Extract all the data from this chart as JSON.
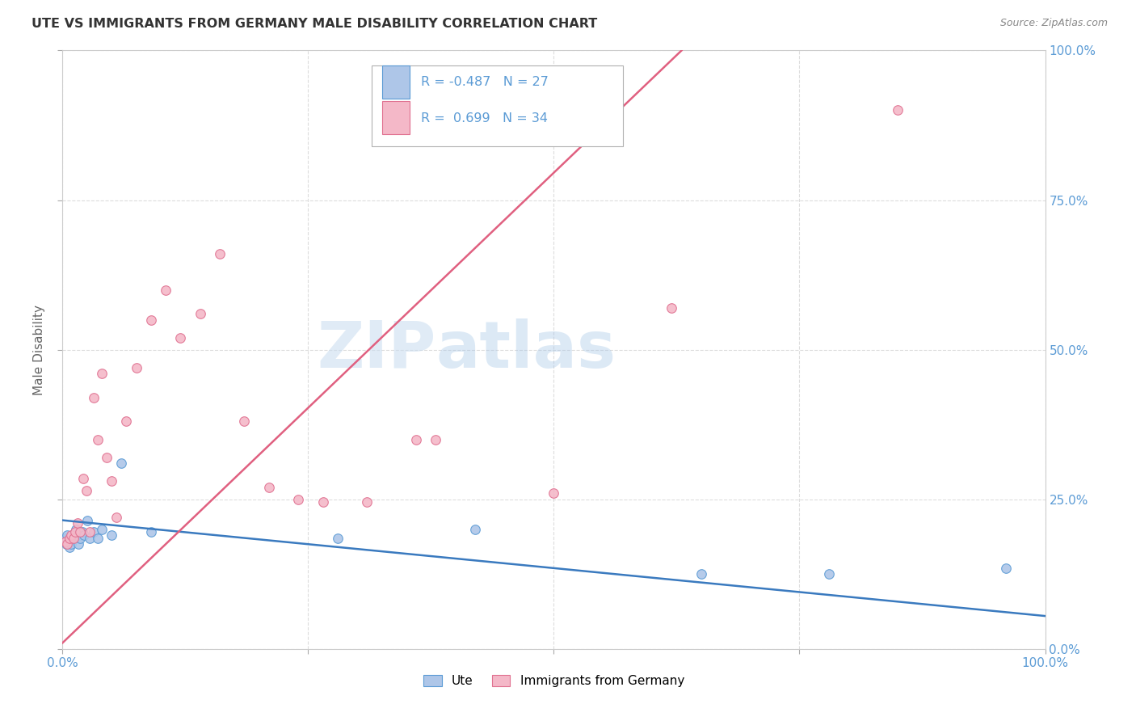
{
  "title": "UTE VS IMMIGRANTS FROM GERMANY MALE DISABILITY CORRELATION CHART",
  "source": "Source: ZipAtlas.com",
  "ylabel": "Male Disability",
  "watermark_zip": "ZIP",
  "watermark_atlas": "atlas",
  "xlim": [
    0.0,
    1.0
  ],
  "ylim": [
    0.0,
    1.0
  ],
  "xtick_vals": [
    0.0,
    0.25,
    0.5,
    0.75,
    1.0
  ],
  "xtick_labels_bottom_left": "0.0%",
  "xtick_labels_bottom_right": "100.0%",
  "ytick_vals": [
    0.0,
    0.25,
    0.5,
    0.75,
    1.0
  ],
  "right_ytick_labels": [
    "0.0%",
    "25.0%",
    "50.0%",
    "75.0%",
    "100.0%"
  ],
  "legend_entries": [
    {
      "label": "Ute",
      "R": "-0.487",
      "N": "27",
      "scatter_color": "#aec6e8",
      "edge_color": "#5b9bd5"
    },
    {
      "label": "Immigrants from Germany",
      "R": "0.699",
      "N": "34",
      "scatter_color": "#f4b8c8",
      "edge_color": "#e07090"
    }
  ],
  "ute_scatter_x": [
    0.003,
    0.004,
    0.005,
    0.006,
    0.007,
    0.008,
    0.009,
    0.01,
    0.012,
    0.014,
    0.016,
    0.018,
    0.02,
    0.022,
    0.025,
    0.028,
    0.032,
    0.036,
    0.04,
    0.05,
    0.06,
    0.09,
    0.28,
    0.42,
    0.65,
    0.78,
    0.96
  ],
  "ute_scatter_y": [
    0.185,
    0.175,
    0.19,
    0.18,
    0.17,
    0.185,
    0.175,
    0.19,
    0.185,
    0.2,
    0.175,
    0.185,
    0.195,
    0.19,
    0.215,
    0.185,
    0.195,
    0.185,
    0.2,
    0.19,
    0.31,
    0.195,
    0.185,
    0.2,
    0.125,
    0.125,
    0.135
  ],
  "germany_scatter_x": [
    0.003,
    0.005,
    0.007,
    0.009,
    0.011,
    0.013,
    0.015,
    0.018,
    0.021,
    0.024,
    0.028,
    0.032,
    0.036,
    0.04,
    0.045,
    0.05,
    0.055,
    0.065,
    0.075,
    0.09,
    0.105,
    0.12,
    0.14,
    0.16,
    0.185,
    0.21,
    0.24,
    0.265,
    0.31,
    0.36,
    0.38,
    0.5,
    0.62,
    0.85
  ],
  "germany_scatter_y": [
    0.18,
    0.175,
    0.185,
    0.19,
    0.185,
    0.195,
    0.21,
    0.195,
    0.285,
    0.265,
    0.195,
    0.42,
    0.35,
    0.46,
    0.32,
    0.28,
    0.22,
    0.38,
    0.47,
    0.55,
    0.6,
    0.52,
    0.56,
    0.66,
    0.38,
    0.27,
    0.25,
    0.245,
    0.245,
    0.35,
    0.35,
    0.26,
    0.57,
    0.9
  ],
  "ute_line": {
    "x0": 0.0,
    "y0": 0.215,
    "x1": 1.0,
    "y1": 0.055
  },
  "germany_line": {
    "x0": 0.0,
    "y0": 0.01,
    "x1": 0.63,
    "y1": 1.0
  },
  "ute_line_color": "#3a7abf",
  "germany_line_color": "#e06080",
  "ute_scatter_color": "#aec6e8",
  "ute_edge_color": "#5b9bd5",
  "germany_scatter_color": "#f4b8c8",
  "germany_edge_color": "#e07090",
  "scatter_size": 70,
  "background_color": "#ffffff",
  "grid_color": "#dddddd",
  "title_color": "#333333",
  "source_color": "#888888",
  "axis_color": "#5b9bd5"
}
